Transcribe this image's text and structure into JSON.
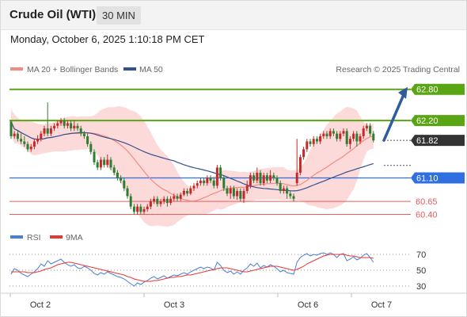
{
  "header": {
    "title": "Crude Oil (WTI)",
    "timeframe": "30 MIN"
  },
  "datetime": "Monday, October 6, 2025 1:10:18 PM CET",
  "legend": {
    "ma20": "MA 20 + Bollinger Bands",
    "ma50": "MA 50",
    "copyright": "Research © 2025 Trading Central",
    "rsi": "RSI",
    "ma9": "9MA"
  },
  "colors": {
    "up_candle": "#2e7d32",
    "down_candle": "#c62828",
    "bollinger_fill": "#fbd3d3",
    "ma20": "#f28b82",
    "ma50": "#34508f",
    "green_level": "#5aa513",
    "blue_level": "#2f6fe0",
    "red_level": "#ef5b5b",
    "current_price": "#333333",
    "forecast_arrow": "#2f5d9c",
    "rsi": "#4a7fd6",
    "rsi_ma": "#e53935"
  },
  "chart_data": [
    {
      "type": "candlestick",
      "name": "price",
      "x_labels": [
        "Oct 2",
        "Oct 3",
        "Oct 6",
        "Oct 7"
      ],
      "ylim": [
        60.15,
        63.1
      ],
      "levels": [
        {
          "value": 62.8,
          "label": "62.80",
          "kind": "resistance"
        },
        {
          "value": 62.2,
          "label": "62.20",
          "kind": "resistance"
        },
        {
          "value": 61.82,
          "label": "61.82",
          "kind": "current"
        },
        {
          "value": 61.1,
          "label": "61.10",
          "kind": "pivot"
        },
        {
          "value": 60.65,
          "label": "60.65",
          "kind": "support"
        },
        {
          "value": 60.4,
          "label": "60.40",
          "kind": "support"
        }
      ],
      "forecast": {
        "from": 61.82,
        "to": 62.8
      },
      "candles": [
        [
          61.9,
          62.18,
          62.21,
          61.85
        ],
        [
          61.95,
          61.9,
          62.0,
          61.85
        ],
        [
          61.85,
          61.95,
          62.0,
          61.8
        ],
        [
          61.8,
          61.85,
          61.95,
          61.75
        ],
        [
          61.75,
          61.8,
          61.9,
          61.7
        ],
        [
          61.65,
          61.75,
          61.8,
          61.6
        ],
        [
          61.7,
          61.65,
          61.75,
          61.6
        ],
        [
          61.8,
          61.7,
          61.85,
          61.65
        ],
        [
          61.85,
          61.8,
          61.92,
          61.75
        ],
        [
          61.95,
          61.85,
          62.0,
          61.8
        ],
        [
          62.05,
          61.95,
          62.1,
          61.9
        ],
        [
          61.95,
          62.05,
          62.55,
          61.9
        ],
        [
          62.05,
          61.95,
          62.1,
          61.9
        ],
        [
          62.1,
          62.05,
          62.15,
          62.0
        ],
        [
          62.15,
          62.1,
          62.2,
          62.05
        ],
        [
          62.2,
          62.15,
          62.25,
          62.1
        ],
        [
          62.1,
          62.2,
          62.25,
          62.05
        ],
        [
          62.15,
          62.1,
          62.2,
          62.05
        ],
        [
          62.05,
          62.15,
          62.2,
          62.0
        ],
        [
          62.1,
          62.05,
          62.2,
          62.0
        ],
        [
          62.05,
          62.1,
          62.15,
          62.0
        ],
        [
          61.95,
          62.05,
          62.1,
          61.9
        ],
        [
          61.9,
          61.95,
          62.0,
          61.85
        ],
        [
          61.75,
          61.9,
          61.95,
          61.7
        ],
        [
          61.6,
          61.75,
          61.8,
          61.55
        ],
        [
          61.4,
          61.6,
          61.65,
          61.35
        ],
        [
          61.3,
          61.4,
          61.45,
          61.25
        ],
        [
          61.45,
          61.3,
          61.5,
          61.25
        ],
        [
          61.35,
          61.45,
          61.5,
          61.3
        ],
        [
          61.45,
          61.35,
          61.55,
          61.3
        ],
        [
          61.3,
          61.45,
          61.5,
          61.25
        ],
        [
          61.2,
          61.3,
          61.35,
          61.15
        ],
        [
          61.1,
          61.2,
          61.25,
          61.05
        ],
        [
          61.05,
          61.1,
          61.15,
          61.0
        ],
        [
          60.9,
          61.05,
          61.1,
          60.85
        ],
        [
          60.75,
          60.9,
          60.95,
          60.7
        ],
        [
          60.55,
          60.75,
          60.8,
          60.5
        ],
        [
          60.45,
          60.55,
          60.6,
          60.4
        ],
        [
          60.55,
          60.45,
          60.6,
          60.4
        ],
        [
          60.45,
          60.55,
          60.6,
          60.4
        ],
        [
          60.5,
          60.45,
          60.55,
          60.4
        ],
        [
          60.55,
          60.5,
          60.6,
          60.45
        ],
        [
          60.65,
          60.55,
          60.7,
          60.5
        ],
        [
          60.7,
          60.65,
          60.75,
          60.6
        ],
        [
          60.6,
          60.7,
          60.75,
          60.55
        ],
        [
          60.65,
          60.6,
          60.7,
          60.55
        ],
        [
          60.7,
          60.65,
          60.75,
          60.6
        ],
        [
          60.62,
          60.7,
          60.75,
          60.55
        ],
        [
          60.7,
          60.62,
          60.75,
          60.58
        ],
        [
          60.75,
          60.7,
          60.8,
          60.65
        ],
        [
          60.7,
          60.75,
          60.8,
          60.65
        ],
        [
          60.78,
          60.7,
          60.82,
          60.66
        ],
        [
          60.85,
          60.78,
          60.9,
          60.75
        ],
        [
          60.8,
          60.85,
          60.9,
          60.75
        ],
        [
          60.9,
          60.8,
          60.95,
          60.77
        ],
        [
          60.95,
          60.9,
          61.0,
          60.85
        ],
        [
          61.0,
          60.95,
          61.05,
          60.9
        ],
        [
          61.05,
          61.0,
          61.1,
          60.95
        ],
        [
          61.0,
          61.05,
          61.1,
          60.95
        ],
        [
          61.1,
          61.0,
          61.15,
          60.95
        ],
        [
          61.05,
          61.1,
          61.15,
          61.0
        ],
        [
          60.95,
          61.05,
          61.1,
          60.9
        ],
        [
          61.3,
          60.95,
          61.35,
          60.9
        ],
        [
          61.1,
          61.3,
          61.35,
          61.05
        ],
        [
          60.9,
          61.1,
          61.15,
          60.85
        ],
        [
          60.8,
          60.9,
          60.95,
          60.75
        ],
        [
          60.9,
          60.8,
          60.95,
          60.7
        ],
        [
          60.75,
          60.9,
          60.95,
          60.7
        ],
        [
          60.85,
          60.75,
          60.9,
          60.68
        ],
        [
          60.7,
          60.85,
          60.9,
          60.65
        ],
        [
          60.85,
          60.7,
          60.9,
          60.62
        ],
        [
          60.95,
          60.85,
          61.05,
          60.8
        ],
        [
          61.15,
          60.95,
          61.2,
          60.9
        ],
        [
          61.05,
          61.15,
          61.2,
          61.0
        ],
        [
          61.2,
          61.05,
          61.3,
          61.0
        ],
        [
          61.0,
          61.2,
          61.25,
          60.95
        ],
        [
          61.15,
          61.0,
          61.2,
          60.95
        ],
        [
          61.05,
          61.15,
          61.2,
          61.0
        ],
        [
          61.15,
          61.05,
          61.25,
          61.0
        ],
        [
          61.1,
          61.15,
          61.2,
          61.05
        ],
        [
          61.0,
          61.1,
          61.15,
          60.95
        ],
        [
          60.85,
          61.0,
          61.05,
          60.8
        ],
        [
          60.9,
          60.85,
          60.95,
          60.8
        ],
        [
          60.8,
          60.9,
          60.95,
          60.7
        ],
        [
          60.75,
          60.8,
          60.85,
          60.7
        ],
        [
          60.7,
          60.75,
          60.8,
          60.65
        ],
        [
          61.2,
          61.0,
          61.85,
          60.95
        ],
        [
          61.5,
          61.2,
          61.55,
          61.15
        ],
        [
          61.65,
          61.5,
          61.7,
          61.45
        ],
        [
          61.8,
          61.65,
          61.85,
          61.6
        ],
        [
          61.75,
          61.8,
          61.85,
          61.7
        ],
        [
          61.85,
          61.75,
          61.9,
          61.7
        ],
        [
          61.8,
          61.85,
          61.9,
          61.75
        ],
        [
          61.9,
          61.8,
          61.95,
          61.75
        ],
        [
          61.95,
          61.9,
          62.0,
          61.85
        ],
        [
          61.9,
          61.95,
          62.0,
          61.85
        ],
        [
          62.0,
          61.9,
          62.05,
          61.85
        ],
        [
          61.95,
          62.0,
          62.05,
          61.9
        ],
        [
          61.85,
          61.95,
          62.0,
          61.8
        ],
        [
          61.95,
          61.85,
          62.0,
          61.8
        ],
        [
          62.0,
          61.95,
          62.05,
          61.9
        ],
        [
          61.75,
          62.0,
          62.05,
          61.7
        ],
        [
          61.85,
          61.75,
          61.9,
          61.65
        ],
        [
          61.95,
          61.85,
          62.0,
          61.8
        ],
        [
          61.8,
          61.95,
          62.0,
          61.7
        ],
        [
          61.9,
          61.8,
          61.95,
          61.75
        ],
        [
          62.05,
          61.9,
          62.1,
          61.85
        ],
        [
          62.1,
          62.05,
          62.15,
          62.0
        ],
        [
          61.95,
          62.1,
          62.15,
          61.9
        ],
        [
          61.82,
          61.95,
          62.0,
          61.78
        ]
      ]
    },
    {
      "type": "line",
      "name": "RSI",
      "y_ticks": [
        70,
        50,
        30
      ],
      "ylim": [
        20,
        80
      ],
      "series": [
        {
          "name": "RSI",
          "values": [
            45,
            52,
            50,
            46,
            44,
            42,
            45,
            48,
            52,
            58,
            55,
            62,
            58,
            60,
            62,
            64,
            60,
            57,
            55,
            57,
            53,
            52,
            55,
            53,
            50,
            46,
            44,
            47,
            45,
            48,
            46,
            44,
            42,
            41,
            39,
            36,
            33,
            30,
            34,
            32,
            35,
            37,
            40,
            42,
            39,
            41,
            43,
            40,
            42,
            44,
            43,
            45,
            47,
            45,
            48,
            50,
            52,
            54,
            52,
            54,
            53,
            50,
            60,
            56,
            50,
            47,
            49,
            45,
            48,
            45,
            50,
            53,
            58,
            55,
            59,
            53,
            56,
            54,
            57,
            55,
            52,
            48,
            50,
            47,
            46,
            45,
            60,
            66,
            69,
            71,
            68,
            70,
            69,
            71,
            72,
            70,
            72,
            70,
            66,
            70,
            71,
            62,
            64,
            67,
            63,
            65,
            69,
            71,
            66,
            60
          ]
        },
        {
          "name": "9MA",
          "values": [
            48,
            48,
            48,
            48,
            48,
            47,
            47,
            47,
            48,
            49,
            51,
            52,
            53,
            55,
            57,
            58,
            59,
            60,
            60,
            59,
            58,
            57,
            56,
            55,
            54,
            53,
            52,
            51,
            50,
            49,
            48,
            47,
            46,
            45,
            44,
            42,
            41,
            39,
            38,
            37,
            36,
            36,
            36,
            37,
            37,
            38,
            39,
            40,
            41,
            41,
            42,
            42,
            43,
            44,
            44,
            45,
            46,
            47,
            48,
            49,
            50,
            51,
            52,
            53,
            53,
            53,
            52,
            51,
            50,
            49,
            48,
            48,
            49,
            50,
            51,
            52,
            53,
            54,
            55,
            55,
            55,
            54,
            53,
            52,
            51,
            50,
            51,
            53,
            55,
            58,
            60,
            62,
            64,
            66,
            68,
            69,
            70,
            70,
            70,
            70,
            70,
            69,
            68,
            68,
            67,
            66,
            66,
            66,
            66,
            65
          ]
        }
      ]
    }
  ]
}
